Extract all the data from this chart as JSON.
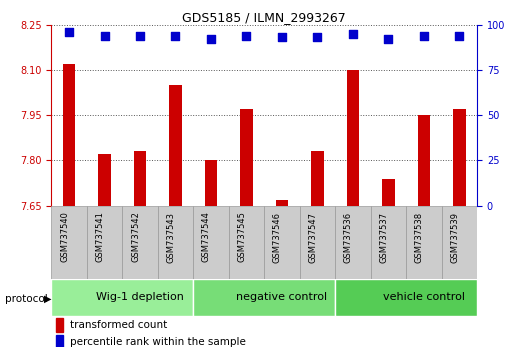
{
  "title": "GDS5185 / ILMN_2993267",
  "samples": [
    "GSM737540",
    "GSM737541",
    "GSM737542",
    "GSM737543",
    "GSM737544",
    "GSM737545",
    "GSM737546",
    "GSM737547",
    "GSM737536",
    "GSM737537",
    "GSM737538",
    "GSM737539"
  ],
  "bar_values": [
    8.12,
    7.82,
    7.83,
    8.05,
    7.8,
    7.97,
    7.67,
    7.83,
    8.1,
    7.74,
    7.95,
    7.97
  ],
  "percentile_values": [
    96,
    94,
    94,
    94,
    92,
    94,
    93,
    93,
    95,
    92,
    94,
    94
  ],
  "bar_color": "#cc0000",
  "dot_color": "#0000cc",
  "ylim_left": [
    7.65,
    8.25
  ],
  "ylim_right": [
    0,
    100
  ],
  "yticks_left": [
    7.65,
    7.8,
    7.95,
    8.1,
    8.25
  ],
  "yticks_right": [
    0,
    25,
    50,
    75,
    100
  ],
  "groups": [
    {
      "label": "Wig-1 depletion",
      "start": 0,
      "end": 4,
      "color": "#99ee99"
    },
    {
      "label": "negative control",
      "start": 4,
      "end": 8,
      "color": "#77dd77"
    },
    {
      "label": "vehicle control",
      "start": 8,
      "end": 12,
      "color": "#55cc55"
    }
  ],
  "protocol_label": "protocol",
  "legend_items": [
    {
      "color": "#cc0000",
      "label": "transformed count"
    },
    {
      "color": "#0000cc",
      "label": "percentile rank within the sample"
    }
  ],
  "grid_color": "#555555",
  "sample_box_color": "#cccccc",
  "sample_box_edge": "#999999",
  "bg_color": "#ffffff",
  "bar_width": 0.35,
  "dot_size": 30,
  "dot_marker": "s",
  "title_fontsize": 9,
  "tick_fontsize": 7,
  "sample_fontsize": 6,
  "group_fontsize": 8,
  "legend_fontsize": 7.5
}
